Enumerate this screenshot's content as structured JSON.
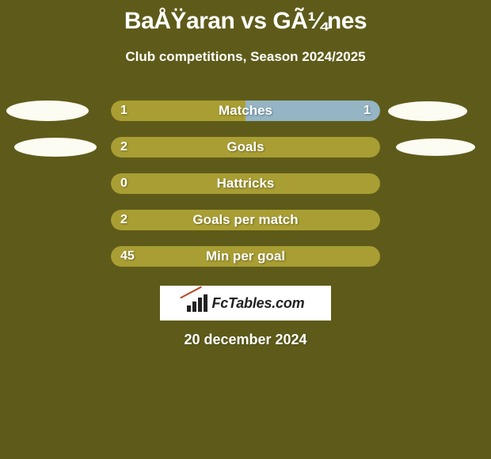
{
  "header": {
    "title": "BaÅŸaran vs GÃ¼nes",
    "subtitle": "Club competitions, Season 2024/2025"
  },
  "colors": {
    "background": "#5e5b1a",
    "left_fill": "#a99e33",
    "right_fill": "#a99e33",
    "first_right_fill": "#95b4c4",
    "ellipse": "#fcfcf2",
    "text": "#ffffff"
  },
  "stats": [
    {
      "label": "Matches",
      "left_val": "1",
      "right_val": "1",
      "left_pct": 50,
      "right_pct": 50,
      "show_right_val": true,
      "show_left_ellipse": "big",
      "show_right_ellipse": "big",
      "right_color": "#95b4c4"
    },
    {
      "label": "Goals",
      "left_val": "2",
      "right_val": "",
      "left_pct": 100,
      "right_pct": 0,
      "show_right_val": false,
      "show_left_ellipse": "small",
      "show_right_ellipse": "small",
      "right_color": "#a99e33"
    },
    {
      "label": "Hattricks",
      "left_val": "0",
      "right_val": "",
      "left_pct": 100,
      "right_pct": 0,
      "show_right_val": false,
      "show_left_ellipse": "none",
      "show_right_ellipse": "none",
      "right_color": "#a99e33"
    },
    {
      "label": "Goals per match",
      "left_val": "2",
      "right_val": "",
      "left_pct": 100,
      "right_pct": 0,
      "show_right_val": false,
      "show_left_ellipse": "none",
      "show_right_ellipse": "none",
      "right_color": "#a99e33"
    },
    {
      "label": "Min per goal",
      "left_val": "45",
      "right_val": "",
      "left_pct": 100,
      "right_pct": 0,
      "show_right_val": false,
      "show_left_ellipse": "none",
      "show_right_ellipse": "none",
      "right_color": "#a99e33"
    }
  ],
  "logo": {
    "text": "FcTables.com"
  },
  "date": "20 december 2024"
}
